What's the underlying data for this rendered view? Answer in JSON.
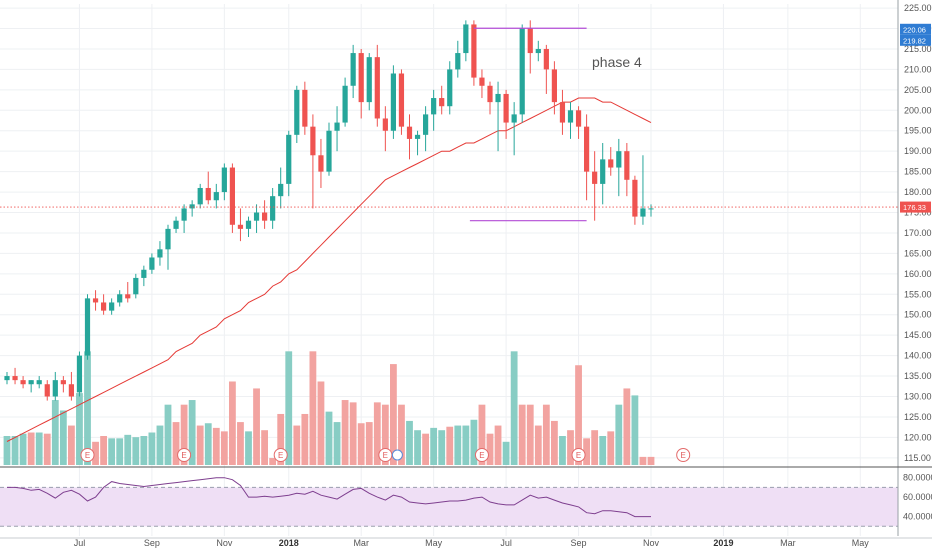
{
  "chart_data": {
    "type": "candlestick",
    "price_axis": {
      "ticks": [
        "225.00",
        "220.00",
        "215.00",
        "210.00",
        "205.00",
        "200.00",
        "195.00",
        "190.00",
        "185.00",
        "180.00",
        "175.00",
        "170.00",
        "165.00",
        "160.00",
        "155.00",
        "150.00",
        "145.00",
        "140.00",
        "135.00",
        "130.00",
        "125.00",
        "120.00",
        "115.00"
      ],
      "range": [
        113,
        226
      ],
      "grid": true
    },
    "time_axis": {
      "labels": [
        {
          "text": "Jul",
          "bar": 9
        },
        {
          "text": "Sep",
          "bar": 18
        },
        {
          "text": "Nov",
          "bar": 27
        },
        {
          "text": "2018",
          "bar": 35,
          "bold": true
        },
        {
          "text": "Mar",
          "bar": 44
        },
        {
          "text": "May",
          "bar": 53
        },
        {
          "text": "Jul",
          "bar": 62
        },
        {
          "text": "Sep",
          "bar": 71
        },
        {
          "text": "Nov",
          "bar": 80
        },
        {
          "text": "2019",
          "bar": 89,
          "bold": true
        },
        {
          "text": "Mar",
          "bar": 97
        },
        {
          "text": "May",
          "bar": 106
        }
      ]
    },
    "candles": [
      [
        134,
        136,
        133,
        135
      ],
      [
        135,
        137,
        133,
        134
      ],
      [
        134,
        135,
        132,
        133
      ],
      [
        133,
        134,
        131,
        134
      ],
      [
        133,
        135,
        132,
        134
      ],
      [
        133,
        134,
        129,
        130
      ],
      [
        130,
        136,
        129,
        134
      ],
      [
        134,
        135,
        131,
        133
      ],
      [
        133,
        136,
        129,
        130
      ],
      [
        131,
        141,
        130,
        140
      ],
      [
        140,
        155,
        139,
        154
      ],
      [
        154,
        156,
        151,
        153
      ],
      [
        153,
        155,
        150,
        151
      ],
      [
        151,
        154,
        150,
        153
      ],
      [
        153,
        156,
        152,
        155
      ],
      [
        155,
        158,
        153,
        154
      ],
      [
        155,
        160,
        154,
        159
      ],
      [
        159,
        162,
        157,
        161
      ],
      [
        161,
        165,
        160,
        164
      ],
      [
        164,
        168,
        162,
        166
      ],
      [
        166,
        172,
        161,
        171
      ],
      [
        171,
        174,
        170,
        173
      ],
      [
        173,
        177,
        170,
        176
      ],
      [
        176,
        178,
        174,
        177
      ],
      [
        177,
        182,
        176,
        181
      ],
      [
        181,
        185,
        177,
        178
      ],
      [
        178,
        182,
        176,
        180
      ],
      [
        180,
        187,
        178,
        186
      ],
      [
        186,
        187,
        170,
        172
      ],
      [
        172,
        176,
        168,
        171
      ],
      [
        171,
        174,
        169,
        173
      ],
      [
        173,
        177,
        170,
        175
      ],
      [
        175,
        178,
        171,
        173
      ],
      [
        173,
        181,
        171,
        179
      ],
      [
        179,
        186,
        176,
        182
      ],
      [
        182,
        195,
        179,
        194
      ],
      [
        194,
        206,
        192,
        205
      ],
      [
        205,
        207,
        194,
        196
      ],
      [
        196,
        199,
        176,
        189
      ],
      [
        189,
        193,
        181,
        185
      ],
      [
        185,
        197,
        184,
        195
      ],
      [
        195,
        201,
        190,
        197
      ],
      [
        197,
        208,
        196,
        206
      ],
      [
        206,
        216,
        203,
        214
      ],
      [
        214,
        215,
        198,
        202
      ],
      [
        202,
        214,
        200,
        213
      ],
      [
        213,
        216,
        196,
        198
      ],
      [
        198,
        201,
        190,
        195
      ],
      [
        195,
        211,
        193,
        209
      ],
      [
        209,
        210,
        194,
        196
      ],
      [
        196,
        199,
        188,
        193
      ],
      [
        193,
        195,
        189,
        194
      ],
      [
        194,
        201,
        190,
        199
      ],
      [
        199,
        205,
        195,
        203
      ],
      [
        203,
        206,
        199,
        201
      ],
      [
        201,
        212,
        199,
        210
      ],
      [
        210,
        217,
        208,
        214
      ],
      [
        214,
        222,
        212,
        221
      ],
      [
        221,
        222,
        206,
        208
      ],
      [
        208,
        210,
        203,
        206
      ],
      [
        206,
        207,
        199,
        202
      ],
      [
        202,
        207,
        190,
        204
      ],
      [
        204,
        205,
        193,
        197
      ],
      [
        197,
        202,
        189,
        199
      ],
      [
        199,
        221,
        197,
        220
      ],
      [
        220,
        222,
        209,
        214
      ],
      [
        214,
        217,
        212,
        215
      ],
      [
        215,
        216,
        204,
        210
      ],
      [
        210,
        212,
        199,
        202
      ],
      [
        202,
        205,
        194,
        197
      ],
      [
        197,
        202,
        193,
        200
      ],
      [
        200,
        201,
        193,
        196
      ],
      [
        196,
        199,
        178,
        185
      ],
      [
        185,
        190,
        173,
        182
      ],
      [
        182,
        192,
        177,
        188
      ],
      [
        188,
        191,
        184,
        186
      ],
      [
        186,
        193,
        179,
        190
      ],
      [
        190,
        192,
        179,
        183
      ],
      [
        183,
        184,
        172,
        174
      ],
      [
        174,
        189,
        172,
        176
      ],
      [
        176,
        177,
        174,
        176
      ]
    ],
    "moving_average": [
      119,
      120,
      121,
      122,
      123,
      124,
      125,
      126,
      127,
      128,
      129,
      130,
      131,
      132,
      133,
      134,
      135,
      136,
      137,
      138,
      139,
      141,
      142,
      143,
      145,
      146,
      147,
      149,
      150,
      151,
      153,
      154,
      155,
      157,
      158,
      160,
      161,
      163,
      165,
      167,
      169,
      171,
      173,
      175,
      177,
      179,
      181,
      183,
      184,
      185,
      186,
      187,
      188,
      189,
      190,
      190,
      191,
      192,
      192,
      193,
      194,
      195,
      195,
      196,
      197,
      198,
      199,
      200,
      201,
      202,
      202,
      203,
      203,
      203,
      202,
      202,
      201,
      200,
      199,
      198,
      197
    ],
    "volume": [
      {
        "h": 0.25,
        "up": true
      },
      {
        "h": 0.25,
        "up": true
      },
      {
        "h": 0.27,
        "up": true
      },
      {
        "h": 0.28,
        "up": false
      },
      {
        "h": 0.28,
        "up": true
      },
      {
        "h": 0.27,
        "up": false
      },
      {
        "h": 0.56,
        "up": true
      },
      {
        "h": 0.47,
        "up": true
      },
      {
        "h": 0.34,
        "up": false
      },
      {
        "h": 0.62,
        "up": true
      },
      {
        "h": 0.98,
        "up": true
      },
      {
        "h": 0.2,
        "up": false
      },
      {
        "h": 0.25,
        "up": false
      },
      {
        "h": 0.23,
        "up": true
      },
      {
        "h": 0.23,
        "up": true
      },
      {
        "h": 0.26,
        "up": true
      },
      {
        "h": 0.24,
        "up": true
      },
      {
        "h": 0.25,
        "up": true
      },
      {
        "h": 0.28,
        "up": true
      },
      {
        "h": 0.34,
        "up": true
      },
      {
        "h": 0.52,
        "up": true
      },
      {
        "h": 0.37,
        "up": false
      },
      {
        "h": 0.52,
        "up": false
      },
      {
        "h": 0.56,
        "up": true
      },
      {
        "h": 0.34,
        "up": false
      },
      {
        "h": 0.36,
        "up": true
      },
      {
        "h": 0.32,
        "up": false
      },
      {
        "h": 0.29,
        "up": false
      },
      {
        "h": 0.72,
        "up": false
      },
      {
        "h": 0.37,
        "up": false
      },
      {
        "h": 0.29,
        "up": true
      },
      {
        "h": 0.66,
        "up": false
      },
      {
        "h": 0.3,
        "up": false
      },
      {
        "h": 0.06,
        "up": false
      },
      {
        "h": 0.44,
        "up": false
      },
      {
        "h": 0.98,
        "up": true
      },
      {
        "h": 0.34,
        "up": false
      },
      {
        "h": 0.44,
        "up": false
      },
      {
        "h": 0.98,
        "up": false
      },
      {
        "h": 0.72,
        "up": false
      },
      {
        "h": 0.46,
        "up": true
      },
      {
        "h": 0.37,
        "up": true
      },
      {
        "h": 0.56,
        "up": false
      },
      {
        "h": 0.54,
        "up": false
      },
      {
        "h": 0.36,
        "up": false
      },
      {
        "h": 0.37,
        "up": false
      },
      {
        "h": 0.54,
        "up": false
      },
      {
        "h": 0.52,
        "up": false
      },
      {
        "h": 0.87,
        "up": false
      },
      {
        "h": 0.52,
        "up": false
      },
      {
        "h": 0.38,
        "up": true
      },
      {
        "h": 0.3,
        "up": true
      },
      {
        "h": 0.27,
        "up": false
      },
      {
        "h": 0.32,
        "up": true
      },
      {
        "h": 0.3,
        "up": true
      },
      {
        "h": 0.33,
        "up": false
      },
      {
        "h": 0.34,
        "up": true
      },
      {
        "h": 0.34,
        "up": true
      },
      {
        "h": 0.39,
        "up": true
      },
      {
        "h": 0.52,
        "up": false
      },
      {
        "h": 0.27,
        "up": false
      },
      {
        "h": 0.34,
        "up": false
      },
      {
        "h": 0.2,
        "up": true
      },
      {
        "h": 0.98,
        "up": true
      },
      {
        "h": 0.52,
        "up": false
      },
      {
        "h": 0.52,
        "up": false
      },
      {
        "h": 0.34,
        "up": false
      },
      {
        "h": 0.52,
        "up": false
      },
      {
        "h": 0.38,
        "up": false
      },
      {
        "h": 0.25,
        "up": true
      },
      {
        "h": 0.3,
        "up": false
      },
      {
        "h": 0.86,
        "up": false
      },
      {
        "h": 0.23,
        "up": false
      },
      {
        "h": 0.3,
        "up": false
      },
      {
        "h": 0.25,
        "up": true
      },
      {
        "h": 0.29,
        "up": false
      },
      {
        "h": 0.52,
        "up": true
      },
      {
        "h": 0.66,
        "up": false
      },
      {
        "h": 0.6,
        "up": true
      },
      {
        "h": 0.07,
        "up": false
      },
      {
        "h": 0.07,
        "up": false
      }
    ],
    "rsi": {
      "ticks": [
        "80.0000",
        "60.0000",
        "40.0000"
      ],
      "band": [
        30,
        70
      ],
      "range": [
        20,
        90
      ],
      "values": [
        70,
        70,
        69,
        67,
        68,
        64,
        59,
        65,
        67,
        63,
        56,
        60,
        70,
        76,
        74,
        73,
        72,
        71,
        72,
        73,
        74,
        75,
        76,
        77,
        78,
        79,
        80,
        80,
        78,
        72,
        60,
        60,
        61,
        60,
        61,
        62,
        64,
        63,
        66,
        62,
        60,
        58,
        63,
        68,
        69,
        64,
        60,
        57,
        62,
        60,
        55,
        54,
        53,
        54,
        55,
        56,
        56,
        57,
        59,
        60,
        55,
        53,
        52,
        52,
        57,
        62,
        59,
        60,
        57,
        54,
        52,
        50,
        44,
        43,
        46,
        46,
        45,
        44,
        40,
        40,
        40
      ]
    },
    "earnings_markers": [
      10,
      22,
      34,
      47,
      59,
      71,
      84
    ],
    "dividend_markers": [
      48
    ],
    "annotations": {
      "phase_label": "phase 4",
      "resistance_line": {
        "value": 220.06,
        "from_bar": 58,
        "to_bar": 72
      },
      "support_line": {
        "value": 173,
        "from_bar": 58,
        "to_bar": 72
      }
    },
    "price_labels": {
      "high": "220.06",
      "high2": "219.82",
      "last": "176.33"
    },
    "earnings_letter": "E",
    "colors": {
      "up": "#26a69a",
      "down": "#ef5350",
      "up_volume": "#88cdc4",
      "down_volume": "#f2a3a0",
      "ma": "#e53935",
      "rsi_line": "#7e3f8f",
      "rsi_band": "#efdff5",
      "annotation_line": "#b24dd6",
      "last_price": "#ef5350",
      "badge_blue": "#2f7cd3"
    }
  }
}
